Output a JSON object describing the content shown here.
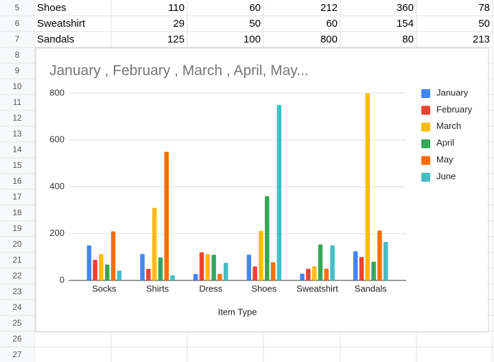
{
  "sheet": {
    "row_numbers": [
      5,
      6,
      7,
      8,
      9,
      10,
      11,
      12,
      13,
      14,
      15,
      16,
      17,
      18,
      19,
      20,
      21,
      22,
      23,
      24,
      25,
      26,
      27
    ],
    "rows": [
      [
        "Shoes",
        110,
        60,
        212,
        360,
        78
      ],
      [
        "Sweatshirt",
        29,
        50,
        60,
        154,
        50
      ],
      [
        "Sandals",
        125,
        100,
        800,
        80,
        213
      ]
    ]
  },
  "chart_data": {
    "type": "bar",
    "title": "January , February , March , April, May...",
    "x_label": "Item Type",
    "categories": [
      "Socks",
      "Shirts",
      "Dress",
      "Shoes",
      "Sweatshirt",
      "Sandals"
    ],
    "series": [
      {
        "name": "January",
        "color": "#4285f4",
        "values": [
          150,
          113,
          28,
          110,
          29,
          125
        ]
      },
      {
        "name": "February",
        "color": "#ea4335",
        "values": [
          88,
          50,
          120,
          60,
          50,
          100
        ]
      },
      {
        "name": "March",
        "color": "#fbbc04",
        "values": [
          113,
          310,
          113,
          212,
          60,
          800
        ]
      },
      {
        "name": "April",
        "color": "#34a853",
        "values": [
          68,
          98,
          110,
          360,
          154,
          80
        ]
      },
      {
        "name": "May",
        "color": "#ff6d01",
        "values": [
          210,
          550,
          28,
          78,
          50,
          213
        ]
      },
      {
        "name": "June",
        "color": "#46bdc6",
        "values": [
          42,
          22,
          75,
          750,
          150,
          165
        ]
      }
    ],
    "ylim": [
      0,
      800
    ],
    "yticks": [
      0,
      200,
      400,
      600,
      800
    ],
    "grid": true,
    "legend": "right"
  }
}
